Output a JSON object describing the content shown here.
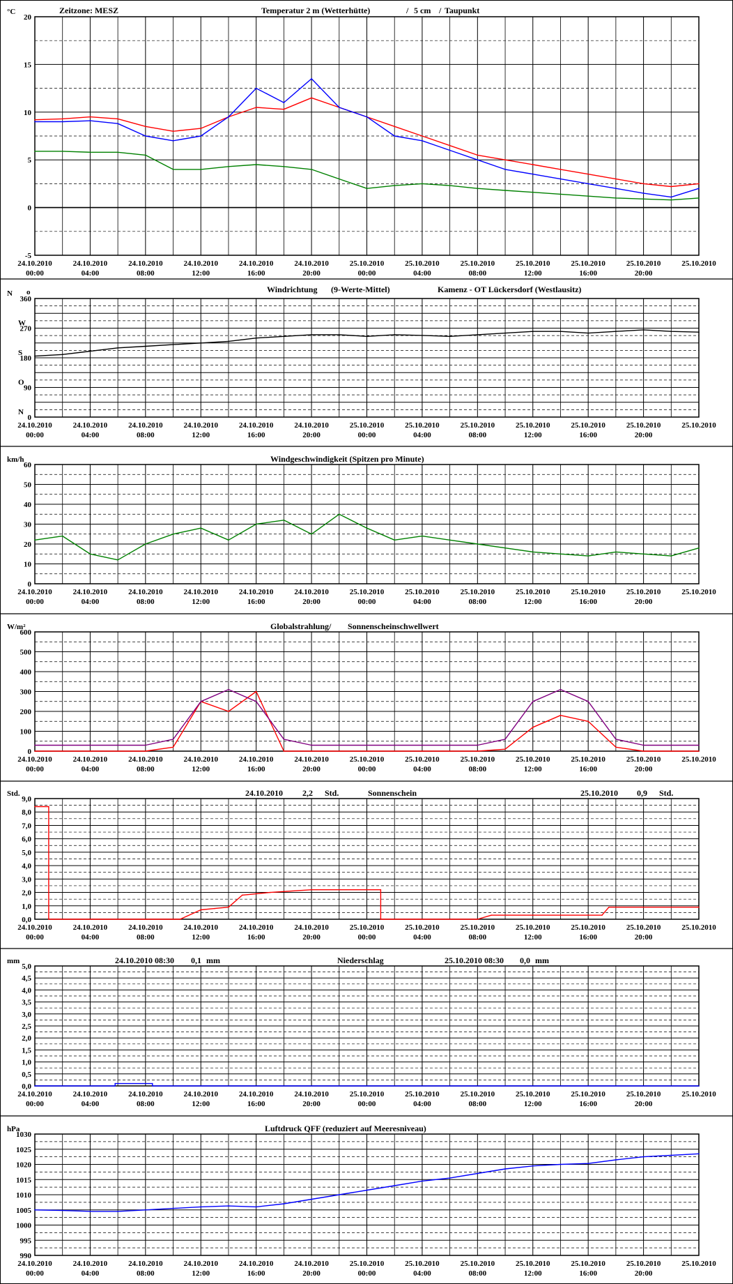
{
  "panels": [
    {
      "id": "temperature",
      "unit": "°C",
      "header": [
        {
          "text": "Zeitzone: MESZ",
          "color": "#000000"
        },
        {
          "text": "Temperatur 2 m (Wetterhütte)",
          "color": "#ff0000"
        },
        {
          "text": "/",
          "color": "#000000"
        },
        {
          "text": "5 cm",
          "color": "#0000ff"
        },
        {
          "text": "/",
          "color": "#000000"
        },
        {
          "text": "Taupunkt",
          "color": "#008000"
        }
      ]
    },
    {
      "id": "wind-direction",
      "unit": "N",
      "header": [
        {
          "text": "Windrichtung",
          "color": "#3366ff"
        },
        {
          "text": "(9-Werte-Mittel)",
          "color": "#000000"
        },
        {
          "text": "Kamenz - OT Lückersdorf (Westlausitz)",
          "color": "#000000"
        }
      ]
    },
    {
      "id": "wind-speed",
      "unit": "km/h",
      "header": [
        {
          "text": "Windgeschwindigkeit (Spitzen pro Minute)",
          "color": "#000000"
        }
      ]
    },
    {
      "id": "radiation",
      "unit": "W/m²",
      "header": [
        {
          "text": "Globalstrahlung/",
          "color": "#000000"
        },
        {
          "text": "Sonnenscheinschwellwert",
          "color": "#800080"
        }
      ]
    },
    {
      "id": "sunshine",
      "unit": "Std.",
      "header": [
        {
          "text": "24.10.2010",
          "color": "#000000"
        },
        {
          "text": "2,2",
          "color": "#000000"
        },
        {
          "text": "Std.",
          "color": "#000000"
        },
        {
          "text": "Sonnenschein",
          "color": "#000000"
        },
        {
          "text": "25.10.2010",
          "color": "#000000"
        },
        {
          "text": "0,9",
          "color": "#000000"
        },
        {
          "text": "Std.",
          "color": "#000000"
        }
      ]
    },
    {
      "id": "precipitation",
      "unit": "mm",
      "header": [
        {
          "text": "24.10.2010 08:30",
          "color": "#000000"
        },
        {
          "text": "0,1",
          "color": "#000000"
        },
        {
          "text": "mm",
          "color": "#000000"
        },
        {
          "text": "Niederschlag",
          "color": "#000000"
        },
        {
          "text": "25.10.2010 08:30",
          "color": "#000000"
        },
        {
          "text": "0,0",
          "color": "#000000"
        },
        {
          "text": "mm",
          "color": "#000000"
        }
      ]
    },
    {
      "id": "pressure",
      "unit": "hPa",
      "header": [
        {
          "text": "Luftdruck QFF (reduziert auf Meeresniveau)",
          "color": "#000000"
        }
      ]
    }
  ],
  "x_axis": {
    "dates": [
      "24.10.2010",
      "24.10.2010",
      "24.10.2010",
      "24.10.2010",
      "24.10.2010",
      "24.10.2010",
      "25.10.2010",
      "25.10.2010",
      "25.10.2010",
      "25.10.2010",
      "25.10.2010",
      "25.10.2010",
      "25.10.2010"
    ],
    "times": [
      "00:00",
      "04:00",
      "08:00",
      "12:00",
      "16:00",
      "20:00",
      "00:00",
      "04:00",
      "08:00",
      "12:00",
      "16:00",
      "20:00",
      ""
    ]
  },
  "chart_data": [
    {
      "type": "line",
      "id": "temperature",
      "ylabel": "°C",
      "ylim": [
        -5,
        20
      ],
      "yticks": [
        -5,
        0,
        5,
        10,
        15,
        20
      ],
      "ytick_labels": [
        "-5",
        "0",
        "5",
        "10",
        "15",
        "20"
      ],
      "x": [
        0,
        2,
        4,
        6,
        8,
        10,
        12,
        14,
        16,
        18,
        20,
        22,
        24,
        26,
        28,
        30,
        32,
        34,
        36,
        38,
        40,
        42,
        44,
        46,
        48
      ],
      "series": [
        {
          "name": "Temperatur 2 m (Wetterhütte)",
          "color": "#ff0000",
          "values": [
            9.2,
            9.3,
            9.5,
            9.3,
            8.5,
            8,
            8.3,
            9.5,
            10.5,
            10.3,
            11.5,
            10.5,
            9.5,
            8.5,
            7.5,
            6.5,
            5.5,
            5,
            4.5,
            4,
            3.5,
            3,
            2.5,
            2.2,
            2.5
          ]
        },
        {
          "name": "5 cm",
          "color": "#0000ff",
          "values": [
            9,
            9,
            9.1,
            8.8,
            7.5,
            7,
            7.5,
            9.5,
            12.5,
            11,
            13.5,
            10.5,
            9.5,
            7.5,
            7,
            6,
            5,
            4,
            3.5,
            3,
            2.5,
            2,
            1.5,
            1.1,
            2
          ]
        },
        {
          "name": "Taupunkt",
          "color": "#008000",
          "values": [
            5.9,
            5.9,
            5.8,
            5.8,
            5.5,
            4,
            4,
            4.3,
            4.5,
            4.3,
            4,
            3,
            2,
            2.3,
            2.5,
            2.3,
            2,
            1.8,
            1.6,
            1.4,
            1.2,
            1,
            0.9,
            0.8,
            1
          ]
        }
      ]
    },
    {
      "type": "line",
      "id": "wind-direction",
      "ylabel": "N",
      "ylim": [
        0,
        360
      ],
      "yticks": [
        0,
        45,
        90,
        135,
        180,
        225,
        270,
        315,
        360
      ],
      "ytick_labels": [
        "0",
        "",
        "90",
        "",
        "180",
        "",
        "270",
        "",
        "360"
      ],
      "compass": {
        "360": "N",
        "270": "W",
        "180": "S",
        "90": "O",
        "0": "N"
      },
      "x": [
        0,
        2,
        4,
        6,
        8,
        10,
        12,
        14,
        16,
        18,
        20,
        22,
        24,
        26,
        28,
        30,
        32,
        34,
        36,
        38,
        40,
        42,
        44,
        46,
        48
      ],
      "series": [
        {
          "name": "Windrichtung",
          "color": "#000000",
          "values": [
            185,
            190,
            200,
            210,
            215,
            220,
            225,
            230,
            240,
            245,
            250,
            250,
            245,
            250,
            248,
            245,
            250,
            255,
            260,
            260,
            255,
            260,
            265,
            260,
            258
          ]
        }
      ]
    },
    {
      "type": "line",
      "id": "wind-speed",
      "ylabel": "km/h",
      "ylim": [
        0,
        60
      ],
      "yticks": [
        0,
        10,
        20,
        30,
        40,
        50,
        60
      ],
      "ytick_labels": [
        "0",
        "10",
        "20",
        "30",
        "40",
        "50",
        "60"
      ],
      "x": [
        0,
        2,
        4,
        6,
        8,
        10,
        12,
        14,
        16,
        18,
        20,
        22,
        24,
        26,
        28,
        30,
        32,
        34,
        36,
        38,
        40,
        42,
        44,
        46,
        48
      ],
      "series": [
        {
          "name": "Windgeschwindigkeit",
          "color": "#008000",
          "values": [
            22,
            24,
            15,
            12,
            20,
            25,
            28,
            22,
            30,
            32,
            25,
            35,
            28,
            22,
            24,
            22,
            20,
            18,
            16,
            15,
            14,
            16,
            15,
            14,
            18
          ]
        }
      ]
    },
    {
      "type": "line",
      "id": "radiation",
      "ylabel": "W/m²",
      "ylim": [
        0,
        600
      ],
      "yticks": [
        0,
        100,
        200,
        300,
        400,
        500,
        600
      ],
      "ytick_labels": [
        "0",
        "100",
        "200",
        "300",
        "400",
        "500",
        "600"
      ],
      "x": [
        0,
        2,
        4,
        6,
        8,
        10,
        12,
        14,
        16,
        18,
        20,
        22,
        24,
        26,
        28,
        30,
        32,
        34,
        36,
        38,
        40,
        42,
        44,
        46,
        48
      ],
      "series": [
        {
          "name": "Globalstrahlung",
          "color": "#ff0000",
          "values": [
            0,
            0,
            0,
            0,
            0,
            20,
            250,
            200,
            300,
            0,
            0,
            0,
            0,
            0,
            0,
            0,
            0,
            10,
            120,
            180,
            150,
            20,
            0,
            0,
            0
          ]
        },
        {
          "name": "Sonnenscheinschwellwert",
          "color": "#800080",
          "values": [
            30,
            30,
            30,
            30,
            30,
            60,
            250,
            310,
            250,
            60,
            30,
            30,
            30,
            30,
            30,
            30,
            30,
            60,
            250,
            310,
            250,
            60,
            30,
            30,
            30
          ]
        }
      ]
    },
    {
      "type": "line",
      "id": "sunshine",
      "ylabel": "Std.",
      "ylim": [
        0,
        9
      ],
      "yticks": [
        0,
        1,
        2,
        3,
        4,
        5,
        6,
        7,
        8,
        9
      ],
      "ytick_labels": [
        "0,0",
        "1,0",
        "2,0",
        "3,0",
        "4,0",
        "5,0",
        "6,0",
        "7,0",
        "8,0",
        "9,0"
      ],
      "series": [
        {
          "name": "Sonnenschein",
          "color": "#ff0000",
          "x": [
            0,
            1,
            1,
            10,
            10.5,
            12,
            13,
            14,
            15,
            17,
            20,
            25,
            25,
            32,
            33,
            41,
            41.5,
            48
          ],
          "values": [
            8.4,
            8.4,
            0,
            0,
            0,
            0.7,
            0.8,
            0.9,
            1.8,
            2,
            2.2,
            2.2,
            0,
            0,
            0.3,
            0.3,
            0.9,
            0.9
          ]
        }
      ]
    },
    {
      "type": "line",
      "id": "precipitation",
      "ylabel": "mm",
      "ylim": [
        0,
        5
      ],
      "yticks": [
        0,
        0.5,
        1,
        1.5,
        2,
        2.5,
        3,
        3.5,
        4,
        4.5,
        5
      ],
      "ytick_labels": [
        "0,0",
        "0,5",
        "1,0",
        "1,5",
        "2,0",
        "2,5",
        "3,0",
        "3,5",
        "4,0",
        "4,5",
        "5,0"
      ],
      "series": [
        {
          "name": "Niederschlag",
          "color": "#0000ff",
          "x": [
            0,
            5.8,
            5.8,
            8.5,
            8.5,
            48
          ],
          "values": [
            0,
            0,
            0.1,
            0.1,
            0,
            0
          ]
        }
      ]
    },
    {
      "type": "line",
      "id": "pressure",
      "ylabel": "hPa",
      "ylim": [
        990,
        1030
      ],
      "yticks": [
        990,
        995,
        1000,
        1005,
        1010,
        1015,
        1020,
        1025,
        1030
      ],
      "ytick_labels": [
        "990",
        "995",
        "1000",
        "1005",
        "1010",
        "1015",
        "1020",
        "1025",
        "1030"
      ],
      "x": [
        0,
        2,
        4,
        6,
        8,
        10,
        12,
        14,
        16,
        18,
        20,
        22,
        24,
        26,
        28,
        30,
        32,
        34,
        36,
        38,
        40,
        42,
        44,
        46,
        48
      ],
      "series": [
        {
          "name": "Luftdruck QFF",
          "color": "#0000ff",
          "values": [
            1005,
            1004.8,
            1004.5,
            1004.5,
            1005,
            1005.5,
            1006,
            1006.3,
            1006,
            1007,
            1008.5,
            1010,
            1011.5,
            1013,
            1014.5,
            1015.5,
            1017,
            1018.5,
            1019.5,
            1020,
            1020.3,
            1021.5,
            1022.5,
            1023,
            1023.5
          ]
        }
      ]
    }
  ]
}
